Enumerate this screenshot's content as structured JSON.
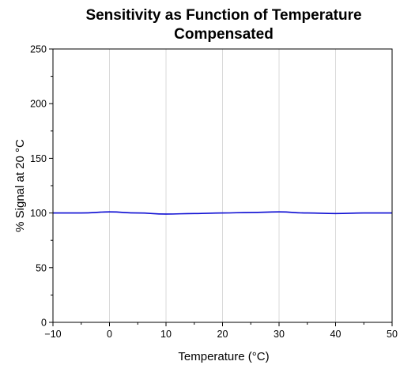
{
  "chart_data": {
    "type": "line",
    "title": [
      "Sensitivity as Function of Temperature",
      "Compensated"
    ],
    "xlabel": "Temperature (°C)",
    "ylabel": "% Signal at 20 °C",
    "xlim": [
      -10,
      50
    ],
    "ylim": [
      0,
      250
    ],
    "xticks": [
      -10,
      0,
      10,
      20,
      30,
      40,
      50
    ],
    "yticks": [
      0,
      50,
      100,
      150,
      200,
      250
    ],
    "xtick_labels": [
      "−10",
      "0",
      "10",
      "20",
      "30",
      "40",
      "50"
    ],
    "ytick_labels": [
      "0",
      "50",
      "100",
      "150",
      "200",
      "250"
    ],
    "grid": "vertical",
    "series": [
      {
        "color": "#0a0ad2",
        "x": [
          -10,
          -5,
          0,
          5,
          10,
          15,
          20,
          25,
          30,
          35,
          40,
          45,
          50
        ],
        "y": [
          100,
          100,
          101,
          100,
          99,
          99.5,
          100,
          100.5,
          101,
          100,
          99.5,
          100,
          100
        ]
      }
    ]
  }
}
